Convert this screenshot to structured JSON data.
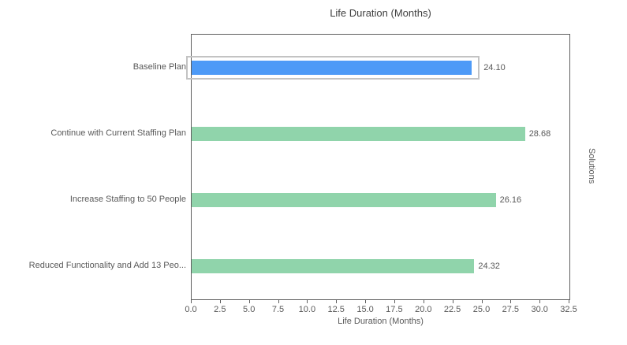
{
  "chart_data": {
    "type": "bar",
    "orientation": "horizontal",
    "title": "Life Duration (Months)",
    "xlabel": "Life Duration (Months)",
    "ylabel": "Solutions",
    "categories": [
      "Baseline Plan",
      "Continue with Current Staffing Plan",
      "Increase Staffing to 50 People",
      "Reduced Functionality and Add 13 Peo..."
    ],
    "values": [
      24.1,
      28.68,
      26.16,
      24.32
    ],
    "value_labels": [
      "24.10",
      "28.68",
      "26.16",
      "24.32"
    ],
    "xlim": [
      0,
      32.5
    ],
    "xticks": [
      "0.0",
      "2.5",
      "5.0",
      "7.5",
      "10.0",
      "12.5",
      "15.0",
      "17.5",
      "20.0",
      "22.5",
      "25.0",
      "27.5",
      "30.0",
      "32.5"
    ],
    "grid": false,
    "legend": null,
    "selected_index": 0,
    "colors": {
      "selected_bar": "#4d9af7",
      "bar": "#90d4ab",
      "selection_outline": "#c3c3c3",
      "plot_border": "#5f5f5f",
      "text": "#595959",
      "title_text": "#3f3f3f"
    }
  }
}
